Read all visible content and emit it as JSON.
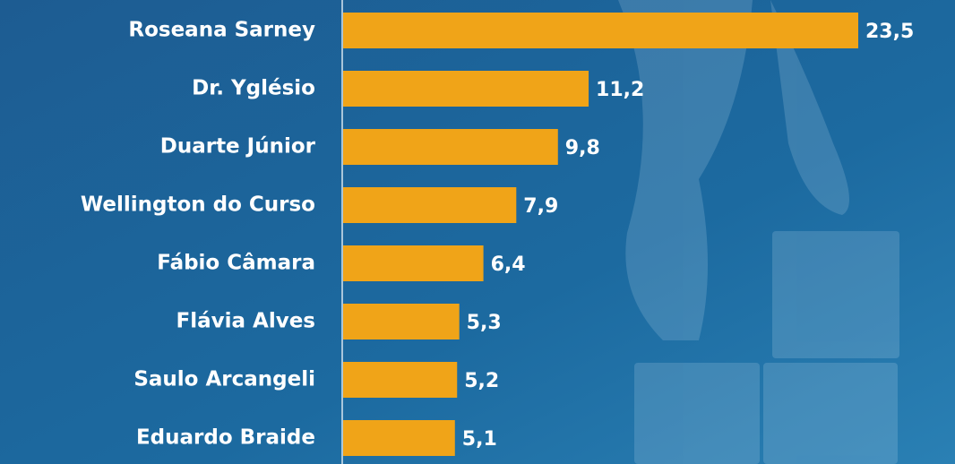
{
  "chart_data": {
    "type": "bar",
    "orientation": "horizontal",
    "categories": [
      "Roseana Sarney",
      "Dr. Yglésio",
      "Duarte Júnior",
      "Wellington do Curso",
      "Fábio Câmara",
      "Flávia Alves",
      "Saulo Arcangeli",
      "Eduardo Braide"
    ],
    "values": [
      23.5,
      11.2,
      9.8,
      7.9,
      6.4,
      5.3,
      5.2,
      5.1
    ],
    "value_labels": [
      "23,5",
      "11,2",
      "9,8",
      "7,9",
      "6,4",
      "5,3",
      "5,2",
      "5,1"
    ],
    "color": "#f0a418"
  }
}
